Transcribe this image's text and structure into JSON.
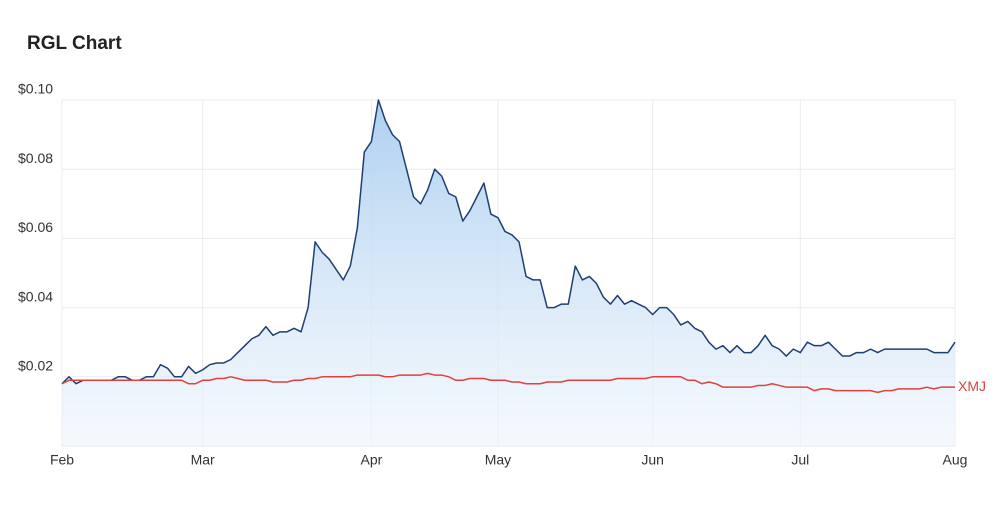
{
  "chart_data": {
    "type": "line",
    "title": "RGL Chart",
    "ylim": [
      0,
      0.1
    ],
    "yticks": [
      {
        "value": 0.02,
        "label": "$0.02"
      },
      {
        "value": 0.04,
        "label": "$0.04"
      },
      {
        "value": 0.06,
        "label": "$0.06"
      },
      {
        "value": 0.08,
        "label": "$0.08"
      },
      {
        "value": 0.1,
        "label": "$0.10"
      }
    ],
    "xlim": [
      0,
      127
    ],
    "xticks": [
      {
        "value": 0,
        "label": "Feb"
      },
      {
        "value": 20,
        "label": "Mar"
      },
      {
        "value": 44,
        "label": "Apr"
      },
      {
        "value": 62,
        "label": "May"
      },
      {
        "value": 84,
        "label": "Jun"
      },
      {
        "value": 105,
        "label": "Jul"
      },
      {
        "value": 127,
        "label": "Aug"
      }
    ],
    "grid": true,
    "series": [
      {
        "color": "#1f3f73",
        "area": true,
        "values": [
          0.018,
          0.02,
          0.018,
          0.019,
          0.019,
          0.019,
          0.019,
          0.019,
          0.02,
          0.02,
          0.019,
          0.019,
          0.02,
          0.02,
          0.0235,
          0.0225,
          0.02,
          0.02,
          0.023,
          0.021,
          0.022,
          0.0235,
          0.024,
          0.024,
          0.025,
          0.027,
          0.029,
          0.031,
          0.032,
          0.0345,
          0.032,
          0.033,
          0.033,
          0.034,
          0.033,
          0.04,
          0.059,
          0.056,
          0.054,
          0.051,
          0.048,
          0.052,
          0.063,
          0.085,
          0.088,
          0.1,
          0.094,
          0.09,
          0.088,
          0.08,
          0.072,
          0.07,
          0.074,
          0.08,
          0.078,
          0.073,
          0.072,
          0.065,
          0.068,
          0.072,
          0.076,
          0.067,
          0.066,
          0.062,
          0.061,
          0.059,
          0.049,
          0.048,
          0.048,
          0.04,
          0.04,
          0.041,
          0.041,
          0.052,
          0.048,
          0.049,
          0.047,
          0.043,
          0.041,
          0.0435,
          0.041,
          0.042,
          0.041,
          0.04,
          0.038,
          0.04,
          0.04,
          0.038,
          0.035,
          0.036,
          0.034,
          0.033,
          0.03,
          0.028,
          0.029,
          0.027,
          0.029,
          0.027,
          0.027,
          0.029,
          0.032,
          0.029,
          0.028,
          0.026,
          0.028,
          0.027,
          0.03,
          0.029,
          0.029,
          0.03,
          0.028,
          0.026,
          0.026,
          0.027,
          0.027,
          0.028,
          0.027,
          0.028,
          0.028,
          0.028,
          0.028,
          0.028,
          0.028,
          0.028,
          0.027,
          0.027,
          0.027,
          0.03
        ]
      },
      {
        "name": "XMJ",
        "color": "#e0403f",
        "area": false,
        "values": [
          0.018,
          0.019,
          0.019,
          0.019,
          0.019,
          0.019,
          0.019,
          0.019,
          0.019,
          0.019,
          0.019,
          0.019,
          0.019,
          0.019,
          0.019,
          0.019,
          0.019,
          0.019,
          0.018,
          0.018,
          0.019,
          0.019,
          0.0195,
          0.0195,
          0.02,
          0.0195,
          0.019,
          0.019,
          0.019,
          0.019,
          0.0185,
          0.0185,
          0.0185,
          0.019,
          0.019,
          0.0195,
          0.0195,
          0.02,
          0.02,
          0.02,
          0.02,
          0.02,
          0.0205,
          0.0205,
          0.0205,
          0.0205,
          0.02,
          0.02,
          0.0205,
          0.0205,
          0.0205,
          0.0205,
          0.021,
          0.0205,
          0.0205,
          0.02,
          0.019,
          0.019,
          0.0195,
          0.0195,
          0.0195,
          0.019,
          0.019,
          0.019,
          0.0185,
          0.0185,
          0.018,
          0.018,
          0.018,
          0.0185,
          0.0185,
          0.0185,
          0.019,
          0.019,
          0.019,
          0.019,
          0.019,
          0.019,
          0.019,
          0.0195,
          0.0195,
          0.0195,
          0.0195,
          0.0195,
          0.02,
          0.02,
          0.02,
          0.02,
          0.02,
          0.019,
          0.019,
          0.018,
          0.0185,
          0.018,
          0.017,
          0.017,
          0.017,
          0.017,
          0.017,
          0.0175,
          0.0175,
          0.018,
          0.0175,
          0.017,
          0.017,
          0.017,
          0.017,
          0.016,
          0.0165,
          0.0165,
          0.016,
          0.016,
          0.016,
          0.016,
          0.016,
          0.016,
          0.0155,
          0.016,
          0.016,
          0.0165,
          0.0165,
          0.0165,
          0.0165,
          0.017,
          0.0165,
          0.017,
          0.017,
          0.017
        ]
      }
    ]
  }
}
